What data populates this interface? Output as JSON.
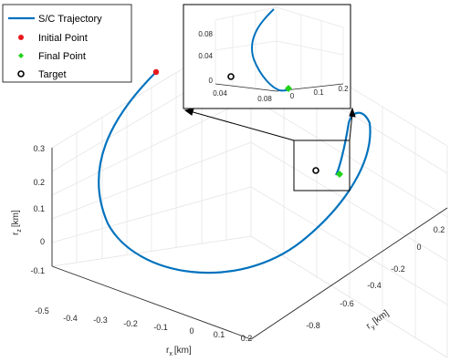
{
  "chart_data": {
    "type": "line",
    "projection": "3d",
    "grid": true,
    "legend_position": "top-left",
    "axes": {
      "x": {
        "label_main": "r",
        "label_sub": "x",
        "label_unit": "[km]",
        "ticks": [
          "-0.5",
          "-0.4",
          "-0.3",
          "-0.2",
          "-0.1",
          "0",
          "0.1",
          "0.2"
        ],
        "range": [
          -0.5,
          0.25
        ]
      },
      "y": {
        "label_main": "r",
        "label_sub": "y",
        "label_unit": "[km]",
        "ticks": [
          "-0.8",
          "-0.6",
          "-0.4",
          "-0.2",
          "0",
          "0.2"
        ],
        "range": [
          -0.85,
          0.25
        ]
      },
      "z": {
        "label_main": "r",
        "label_sub": "z",
        "label_unit": "[km]",
        "ticks": [
          "-0.1",
          "0",
          "0.1",
          "0.2",
          "0.3"
        ],
        "range": [
          -0.15,
          0.32
        ]
      }
    },
    "series": [
      {
        "name": "S/C Trajectory",
        "kind": "line",
        "color": "#0072BD",
        "points": [
          {
            "x": -0.05,
            "y": -0.55,
            "z": 0.3
          },
          {
            "x": -0.22,
            "y": -0.55,
            "z": 0.22
          },
          {
            "x": -0.36,
            "y": -0.45,
            "z": 0.12
          },
          {
            "x": -0.43,
            "y": -0.3,
            "z": 0.02
          },
          {
            "x": -0.42,
            "y": -0.12,
            "z": -0.06
          },
          {
            "x": -0.32,
            "y": 0.03,
            "z": -0.1
          },
          {
            "x": -0.15,
            "y": 0.12,
            "z": -0.1
          },
          {
            "x": 0.02,
            "y": 0.15,
            "z": -0.06
          },
          {
            "x": 0.15,
            "y": 0.12,
            "z": 0.0
          },
          {
            "x": 0.22,
            "y": 0.05,
            "z": 0.06
          },
          {
            "x": 0.22,
            "y": -0.02,
            "z": 0.12
          },
          {
            "x": 0.17,
            "y": -0.06,
            "z": 0.15
          },
          {
            "x": 0.12,
            "y": -0.06,
            "z": 0.13
          },
          {
            "x": 0.1,
            "y": -0.03,
            "z": 0.09
          },
          {
            "x": 0.1,
            "y": 0.0,
            "z": 0.06
          },
          {
            "x": 0.12,
            "y": 0.0,
            "z": 0.04
          }
        ]
      },
      {
        "name": "Initial Point",
        "kind": "marker",
        "marker": "filled-circle",
        "color": "#e8191c",
        "points": [
          {
            "x": -0.05,
            "y": -0.55,
            "z": 0.3
          }
        ]
      },
      {
        "name": "Final Point",
        "kind": "marker",
        "marker": "filled-diamond",
        "color": "#22d21a",
        "points": [
          {
            "x": 0.12,
            "y": 0.0,
            "z": 0.04
          }
        ]
      },
      {
        "name": "Target",
        "kind": "marker",
        "marker": "open-circle",
        "color": "#000000",
        "points": [
          {
            "x": 0.1,
            "y": 0.01,
            "z": 0.05
          }
        ]
      }
    ],
    "inset": {
      "ticks_z": [
        "0",
        "0.04",
        "0.08"
      ],
      "ticks_left": [
        "0.04",
        "0.08"
      ],
      "ticks_right": [
        "0",
        "0.1",
        "0.2"
      ]
    }
  }
}
